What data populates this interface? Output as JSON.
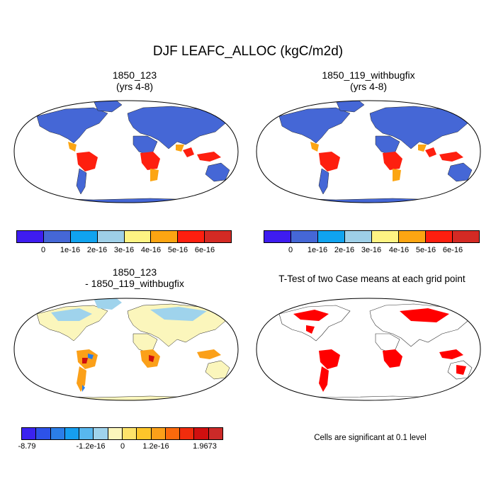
{
  "figure": {
    "title": "DJF LEAFC_ALLOC (kgC/m2d)",
    "panels": [
      {
        "title_line1": "1850_123",
        "title_line2": "(yrs 4-8)"
      },
      {
        "title_line1": "1850_119_withbugfix",
        "title_line2": "(yrs 4-8)"
      },
      {
        "title_line1": "1850_123",
        "title_line2": "- 1850_119_withbugfix"
      },
      {
        "title_line1": "T-Test of two Case means at each grid point"
      }
    ],
    "significance_note": "Cells are significant at 0.1 level"
  },
  "colorbars": {
    "case": {
      "colors": [
        "#3e1cf0",
        "#4567d6",
        "#10a3ef",
        "#9ecfe7",
        "#fef383",
        "#fca512",
        "#fe1f0f",
        "#d42a24"
      ],
      "labels": [
        "0",
        "1e-16",
        "2e-16",
        "3e-16",
        "4e-16",
        "5e-16",
        "6e-16"
      ]
    },
    "diff": {
      "colors": [
        "#3b22f0",
        "#2d52e8",
        "#2b7ee8",
        "#169ef0",
        "#58b7ef",
        "#9fd3ec",
        "#fbf6bc",
        "#fde36a",
        "#fec62a",
        "#fba019",
        "#fb6a0c",
        "#f02c0c",
        "#d00f0f",
        "#cc2a28"
      ],
      "labels": [
        "-8.79",
        "-1.2e-16",
        "0",
        "1.2e-16",
        "1.9673"
      ]
    }
  },
  "map_colors": {
    "ocean": "#ffffff",
    "case_land_low": "#4567d6",
    "case_land_high": "#fe1f0f",
    "case_land_mid": "#fca512",
    "diff_land_neutral": "#fbf6bc",
    "diff_land_cool": "#9fd3ec",
    "diff_land_warm": "#fba019",
    "ttest_significant": "#ff0000"
  }
}
